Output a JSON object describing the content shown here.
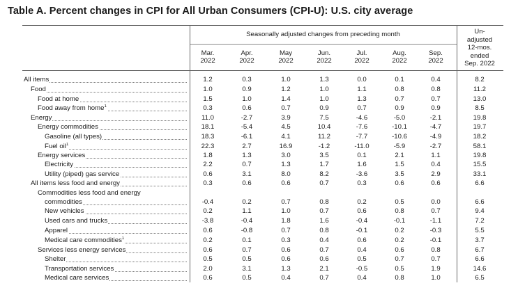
{
  "title": "Table A. Percent changes in CPI for All Urban Consumers (CPI-U): U.S. city average",
  "header": {
    "group_label": "Seasonally adjusted changes from preceding month",
    "months": [
      {
        "month": "Mar.",
        "year": "2022"
      },
      {
        "month": "Apr.",
        "year": "2022"
      },
      {
        "month": "May",
        "year": "2022"
      },
      {
        "month": "Jun.",
        "year": "2022"
      },
      {
        "month": "Jul.",
        "year": "2022"
      },
      {
        "month": "Aug.",
        "year": "2022"
      },
      {
        "month": "Sep.",
        "year": "2022"
      }
    ],
    "unadjusted_lines": [
      "Un-",
      "adjusted",
      "12-mos.",
      "ended",
      "Sep. 2022"
    ]
  },
  "rows": [
    {
      "label": "All items",
      "sup": "",
      "indent": 0,
      "values": [
        "1.2",
        "0.3",
        "1.0",
        "1.3",
        "0.0",
        "0.1",
        "0.4",
        "8.2"
      ]
    },
    {
      "label": "Food",
      "sup": "",
      "indent": 1,
      "values": [
        "1.0",
        "0.9",
        "1.2",
        "1.0",
        "1.1",
        "0.8",
        "0.8",
        "11.2"
      ]
    },
    {
      "label": "Food at home",
      "sup": "",
      "indent": 2,
      "values": [
        "1.5",
        "1.0",
        "1.4",
        "1.0",
        "1.3",
        "0.7",
        "0.7",
        "13.0"
      ]
    },
    {
      "label": "Food away from home",
      "sup": "1",
      "indent": 2,
      "values": [
        "0.3",
        "0.6",
        "0.7",
        "0.9",
        "0.7",
        "0.9",
        "0.9",
        "8.5"
      ]
    },
    {
      "label": "Energy",
      "sup": "",
      "indent": 1,
      "values": [
        "11.0",
        "-2.7",
        "3.9",
        "7.5",
        "-4.6",
        "-5.0",
        "-2.1",
        "19.8"
      ]
    },
    {
      "label": "Energy commodities",
      "sup": "",
      "indent": 2,
      "values": [
        "18.1",
        "-5.4",
        "4.5",
        "10.4",
        "-7.6",
        "-10.1",
        "-4.7",
        "19.7"
      ]
    },
    {
      "label": "Gasoline (all types)",
      "sup": "",
      "indent": 3,
      "values": [
        "18.3",
        "-6.1",
        "4.1",
        "11.2",
        "-7.7",
        "-10.6",
        "-4.9",
        "18.2"
      ]
    },
    {
      "label": "Fuel oil",
      "sup": "1",
      "indent": 3,
      "values": [
        "22.3",
        "2.7",
        "16.9",
        "-1.2",
        "-11.0",
        "-5.9",
        "-2.7",
        "58.1"
      ]
    },
    {
      "label": "Energy services",
      "sup": "",
      "indent": 2,
      "values": [
        "1.8",
        "1.3",
        "3.0",
        "3.5",
        "0.1",
        "2.1",
        "1.1",
        "19.8"
      ]
    },
    {
      "label": "Electricity",
      "sup": "",
      "indent": 3,
      "values": [
        "2.2",
        "0.7",
        "1.3",
        "1.7",
        "1.6",
        "1.5",
        "0.4",
        "15.5"
      ]
    },
    {
      "label": "Utility (piped) gas service",
      "sup": "",
      "indent": 3,
      "values": [
        "0.6",
        "3.1",
        "8.0",
        "8.2",
        "-3.6",
        "3.5",
        "2.9",
        "33.1"
      ]
    },
    {
      "label": "All items less food and energy",
      "sup": "",
      "indent": 1,
      "values": [
        "0.3",
        "0.6",
        "0.6",
        "0.7",
        "0.3",
        "0.6",
        "0.6",
        "6.6"
      ]
    },
    {
      "label": "Commodities less food and energy",
      "label2": "commodities",
      "sup": "",
      "indent": 2,
      "values": [
        "-0.4",
        "0.2",
        "0.7",
        "0.8",
        "0.2",
        "0.5",
        "0.0",
        "6.6"
      ]
    },
    {
      "label": "New vehicles",
      "sup": "",
      "indent": 3,
      "values": [
        "0.2",
        "1.1",
        "1.0",
        "0.7",
        "0.6",
        "0.8",
        "0.7",
        "9.4"
      ]
    },
    {
      "label": "Used cars and trucks",
      "sup": "",
      "indent": 3,
      "values": [
        "-3.8",
        "-0.4",
        "1.8",
        "1.6",
        "-0.4",
        "-0.1",
        "-1.1",
        "7.2"
      ]
    },
    {
      "label": "Apparel",
      "sup": "",
      "indent": 3,
      "values": [
        "0.6",
        "-0.8",
        "0.7",
        "0.8",
        "-0.1",
        "0.2",
        "-0.3",
        "5.5"
      ]
    },
    {
      "label": "Medical care commodities",
      "sup": "1",
      "indent": 3,
      "values": [
        "0.2",
        "0.1",
        "0.3",
        "0.4",
        "0.6",
        "0.2",
        "-0.1",
        "3.7"
      ]
    },
    {
      "label": "Services less energy services",
      "sup": "",
      "indent": 2,
      "values": [
        "0.6",
        "0.7",
        "0.6",
        "0.7",
        "0.4",
        "0.6",
        "0.8",
        "6.7"
      ]
    },
    {
      "label": "Shelter",
      "sup": "",
      "indent": 3,
      "values": [
        "0.5",
        "0.5",
        "0.6",
        "0.6",
        "0.5",
        "0.7",
        "0.7",
        "6.6"
      ]
    },
    {
      "label": "Transportation services",
      "sup": "",
      "indent": 3,
      "values": [
        "2.0",
        "3.1",
        "1.3",
        "2.1",
        "-0.5",
        "0.5",
        "1.9",
        "14.6"
      ]
    },
    {
      "label": "Medical care services",
      "sup": "",
      "indent": 3,
      "values": [
        "0.6",
        "0.5",
        "0.4",
        "0.7",
        "0.4",
        "0.8",
        "1.0",
        "6.5"
      ]
    }
  ]
}
